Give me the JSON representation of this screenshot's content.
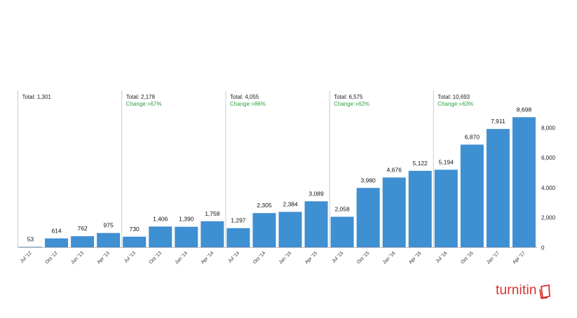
{
  "brand": {
    "name": "turnitin",
    "color": "#d9302f"
  },
  "colors": {
    "bar": "#3f8fd3",
    "change_text": "#2ea043",
    "divider": "#cccccc"
  },
  "chart_data": {
    "type": "bar",
    "categories": [
      "Jul '12",
      "Oct '12",
      "Jan '13",
      "Apr '13",
      "Jul '13",
      "Oct '13",
      "Jan '14",
      "Apr '14",
      "Jul '14",
      "Oct '14",
      "Jan '15",
      "Apr '15",
      "Jul '15",
      "Oct '15",
      "Jan '16",
      "Apr '16",
      "Jul '16",
      "Oct '16",
      "Jan '17",
      "Apr '17"
    ],
    "values": [
      53,
      614,
      762,
      975,
      730,
      1406,
      1390,
      1758,
      1297,
      2305,
      2384,
      3089,
      2058,
      3980,
      4676,
      5122,
      5194,
      6870,
      7911,
      8698
    ],
    "data_labels": [
      "53",
      "614",
      "762",
      "975",
      "730",
      "1,406",
      "1,390",
      "1,758",
      "1,297",
      "2,305",
      "2,384",
      "3,089",
      "2,058",
      "3,980",
      "4,676",
      "5,122",
      "5,194",
      "6,870",
      "7,911",
      "8,698"
    ],
    "ylim": [
      0,
      8900
    ],
    "yticks": [
      0,
      2000,
      4000,
      6000,
      8000
    ],
    "ytick_labels": [
      "0",
      "2,000",
      "4,000",
      "6,000",
      "8,000"
    ],
    "y_axis_side": "right",
    "grid": false,
    "annotations": [
      {
        "start_index": 0,
        "total": "Total: 1,301",
        "change": ""
      },
      {
        "start_index": 4,
        "total": "Total: 2,178",
        "change": "Change:+67%"
      },
      {
        "start_index": 8,
        "total": "Total: 4,055",
        "change": "Change:+86%"
      },
      {
        "start_index": 12,
        "total": "Total: 6,575",
        "change": "Change:+62%"
      },
      {
        "start_index": 16,
        "total": "Total: 10,693",
        "change": "Change:+63%"
      }
    ]
  }
}
